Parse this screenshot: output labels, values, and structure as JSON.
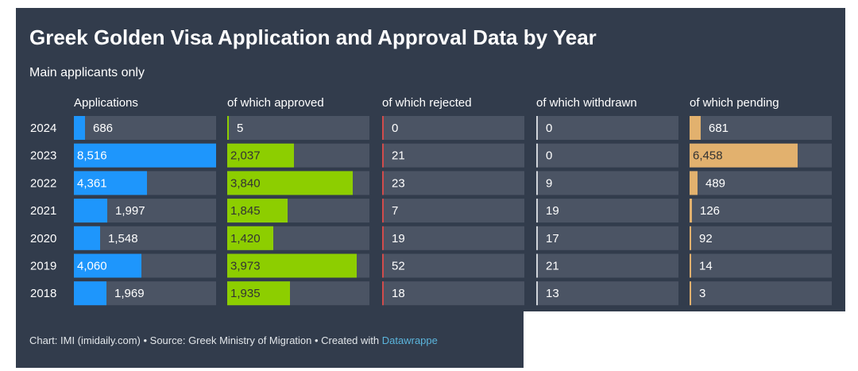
{
  "chart_data": {
    "type": "table",
    "title": "Greek Golden Visa Application and Approval Data by Year",
    "subtitle": "Main applicants only",
    "years": [
      "2024",
      "2023",
      "2022",
      "2021",
      "2020",
      "2019",
      "2018"
    ],
    "columns": [
      {
        "header": "Applications",
        "color": "#1e96fc",
        "max": 8516,
        "values": [
          686,
          8516,
          4361,
          1997,
          1548,
          4060,
          1969
        ],
        "labels": [
          "686",
          "8,516",
          "4,361",
          "1,997",
          "1,548",
          "4,060",
          "1,969"
        ]
      },
      {
        "header": "of which approved",
        "color": "#8dce00",
        "max": 4361,
        "values": [
          5,
          2037,
          3840,
          1845,
          1420,
          3973,
          1935
        ],
        "labels": [
          "5",
          "2,037",
          "3,840",
          "1,845",
          "1,420",
          "3,973",
          "1,935"
        ]
      },
      {
        "header": "of which rejected",
        "color": "#d14b4b",
        "max": 8516,
        "values": [
          0,
          21,
          23,
          7,
          19,
          52,
          18
        ],
        "labels": [
          "0",
          "21",
          "23",
          "7",
          "19",
          "52",
          "18"
        ]
      },
      {
        "header": "of which withdrawn",
        "color": "#d0d4da",
        "max": 8516,
        "values": [
          0,
          0,
          9,
          19,
          17,
          21,
          13
        ],
        "labels": [
          "0",
          "0",
          "9",
          "19",
          "17",
          "21",
          "13"
        ]
      },
      {
        "header": "of which pending",
        "color": "#e2b16e",
        "max": 8516,
        "values": [
          681,
          6458,
          489,
          126,
          92,
          14,
          3
        ],
        "labels": [
          "681",
          "6,458",
          "489",
          "126",
          "92",
          "14",
          "3"
        ]
      }
    ]
  },
  "footer": {
    "credit": "Chart: IMI (imidaily.com) • Source: Greek Ministry of Migration • Created with ",
    "tool": "Datawrappe"
  },
  "colors": {
    "background": "#323c4c",
    "track": "#4b5464",
    "text": "#ffffff"
  }
}
